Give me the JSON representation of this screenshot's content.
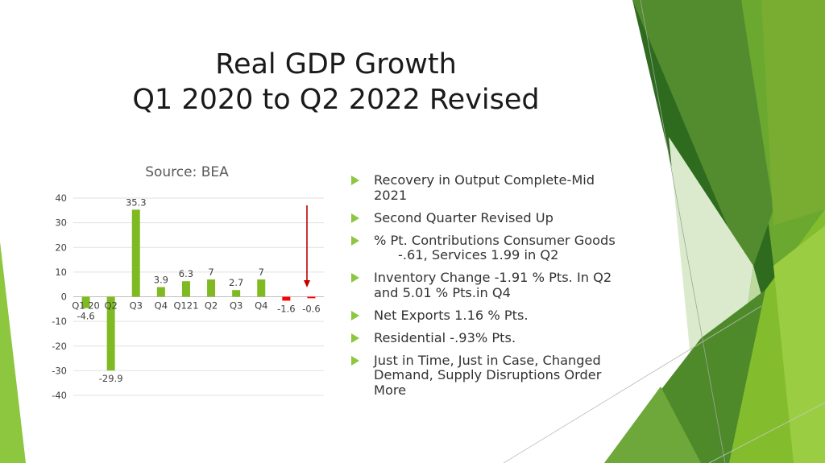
{
  "title": {
    "line1": "Real GDP Growth",
    "line2": "Q1 2020 to Q2 2022 Revised"
  },
  "colors": {
    "positive": "#7fba22",
    "negative": "#ff0000",
    "arrow": "#c00000",
    "bullet": "#8dc63f"
  },
  "chart_data": {
    "type": "bar",
    "title": "Source: BEA",
    "categories": [
      "Q1 20",
      "Q2",
      "Q3",
      "Q4",
      "Q121",
      "Q2",
      "Q3",
      "Q4",
      "",
      ""
    ],
    "values": [
      -4.6,
      -29.9,
      35.3,
      3.9,
      6.3,
      7,
      2.7,
      7,
      -1.6,
      -0.6
    ],
    "data_labels": [
      "-4.6",
      "-29.9",
      "35.3",
      "3.9",
      "6.3",
      "7",
      "2.7",
      "7",
      "-1.6",
      "-0.6"
    ],
    "ylim": [
      -40,
      40
    ],
    "yticks": [
      40,
      30,
      20,
      10,
      0,
      -10,
      -20,
      -30,
      -40
    ],
    "grid": true,
    "annotation": "downward arrow over last two bars"
  },
  "bullets": [
    {
      "text": "Recovery in Output Complete-Mid 2021"
    },
    {
      "text": "Second Quarter Revised Up"
    },
    {
      "text": "% Pt. Contributions Consumer Goods",
      "text2": "-.61, Services 1.99 in Q2"
    },
    {
      "text": "Inventory Change -1.91 % Pts. In Q2 and 5.01 % Pts.in Q4"
    },
    {
      "text": "Net Exports 1.16 % Pts."
    },
    {
      "text": "Residential -.93% Pts."
    },
    {
      "text": "Just in Time, Just in Case, Changed Demand, Supply Disruptions Order More"
    }
  ]
}
